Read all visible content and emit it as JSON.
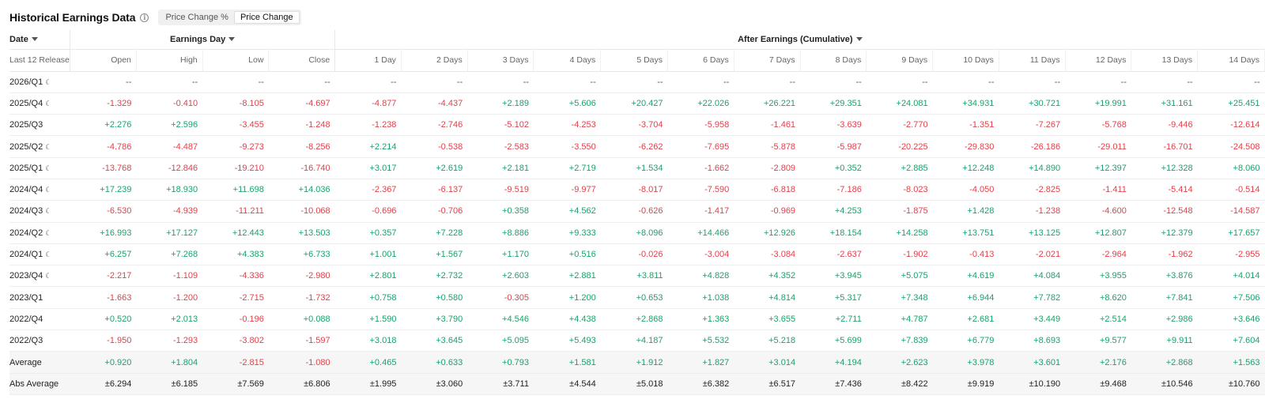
{
  "header": {
    "title": "Historical Earnings Data",
    "info_icon": "info-icon",
    "toggle": {
      "options": [
        "Price Change %",
        "Price Change"
      ],
      "selected": "Price Change"
    }
  },
  "table": {
    "group_headers": {
      "date": "Date",
      "earnings_day": "Earnings Day",
      "after_earnings": "After Earnings (Cumulative)"
    },
    "columns": [
      "Last 12 Releases",
      "Open",
      "High",
      "Low",
      "Close",
      "1 Day",
      "2 Days",
      "3 Days",
      "4 Days",
      "5 Days",
      "6 Days",
      "7 Days",
      "8 Days",
      "9 Days",
      "10 Days",
      "11 Days",
      "12 Days",
      "13 Days",
      "14 Days"
    ],
    "rows": [
      {
        "label": "2026/Q1",
        "moon": true,
        "values": [
          "--",
          "--",
          "--",
          "--",
          "--",
          "--",
          "--",
          "--",
          "--",
          "--",
          "--",
          "--",
          "--",
          "--",
          "--",
          "--",
          "--",
          "--"
        ]
      },
      {
        "label": "2025/Q4",
        "moon": true,
        "values": [
          "-1.329",
          "-0.410",
          "-8.105",
          "-4.697",
          "-4.877",
          "-4.437",
          "+2.189",
          "+5.606",
          "+20.427",
          "+22.026",
          "+26.221",
          "+29.351",
          "+24.081",
          "+34.931",
          "+30.721",
          "+19.991",
          "+31.161",
          "+25.451"
        ]
      },
      {
        "label": "2025/Q3",
        "moon": false,
        "values": [
          "+2.276",
          "+2.596",
          "-3.455",
          "-1.248",
          "-1.238",
          "-2.746",
          "-5.102",
          "-4.253",
          "-3.704",
          "-5.958",
          "-1.461",
          "-3.639",
          "-2.770",
          "-1.351",
          "-7.267",
          "-5.768",
          "-9.446",
          "-12.614"
        ]
      },
      {
        "label": "2025/Q2",
        "moon": true,
        "values": [
          "-4.786",
          "-4.487",
          "-9.273",
          "-8.256",
          "+2.214",
          "-0.538",
          "-2.583",
          "-3.550",
          "-6.262",
          "-7.695",
          "-5.878",
          "-5.987",
          "-20.225",
          "-29.830",
          "-26.186",
          "-29.011",
          "-16.701",
          "-24.508"
        ]
      },
      {
        "label": "2025/Q1",
        "moon": true,
        "values": [
          "-13.768",
          "-12.846",
          "-19.210",
          "-16.740",
          "+3.017",
          "+2.619",
          "+2.181",
          "+2.719",
          "+1.534",
          "-1.662",
          "-2.809",
          "+0.352",
          "+2.885",
          "+12.248",
          "+14.890",
          "+12.397",
          "+12.328",
          "+8.060"
        ]
      },
      {
        "label": "2024/Q4",
        "moon": true,
        "values": [
          "+17.239",
          "+18.930",
          "+11.698",
          "+14.036",
          "-2.367",
          "-6.137",
          "-9.519",
          "-9.977",
          "-8.017",
          "-7.590",
          "-6.818",
          "-7.186",
          "-8.023",
          "-4.050",
          "-2.825",
          "-1.411",
          "-5.414",
          "-0.514"
        ]
      },
      {
        "label": "2024/Q3",
        "moon": true,
        "values": [
          "-6.530",
          "-4.939",
          "-11.211",
          "-10.068",
          "-0.696",
          "-0.706",
          "+0.358",
          "+4.562",
          "-0.626",
          "-1.417",
          "-0.969",
          "+4.253",
          "-1.875",
          "+1.428",
          "-1.238",
          "-4.600",
          "-12.548",
          "-14.587"
        ]
      },
      {
        "label": "2024/Q2",
        "moon": true,
        "values": [
          "+16.993",
          "+17.127",
          "+12.443",
          "+13.503",
          "+0.357",
          "+7.228",
          "+8.886",
          "+9.333",
          "+8.096",
          "+14.466",
          "+12.926",
          "+18.154",
          "+14.258",
          "+13.751",
          "+13.125",
          "+12.807",
          "+12.379",
          "+17.657"
        ]
      },
      {
        "label": "2024/Q1",
        "moon": true,
        "values": [
          "+6.257",
          "+7.268",
          "+4.383",
          "+6.733",
          "+1.001",
          "+1.567",
          "+1.170",
          "+0.516",
          "-0.026",
          "-3.004",
          "-3.084",
          "-2.637",
          "-1.902",
          "-0.413",
          "-2.021",
          "-2.964",
          "-1.962",
          "-2.955"
        ]
      },
      {
        "label": "2023/Q4",
        "moon": true,
        "values": [
          "-2.217",
          "-1.109",
          "-4.336",
          "-2.980",
          "+2.801",
          "+2.732",
          "+2.603",
          "+2.881",
          "+3.811",
          "+4.828",
          "+4.352",
          "+3.945",
          "+5.075",
          "+4.619",
          "+4.084",
          "+3.955",
          "+3.876",
          "+4.014"
        ]
      },
      {
        "label": "2023/Q1",
        "moon": false,
        "values": [
          "-1.663",
          "-1.200",
          "-2.715",
          "-1.732",
          "+0.758",
          "+0.580",
          "-0.305",
          "+1.200",
          "+0.653",
          "+1.038",
          "+4.814",
          "+5.317",
          "+7.348",
          "+6.944",
          "+7.782",
          "+8.620",
          "+7.841",
          "+7.506"
        ]
      },
      {
        "label": "2022/Q4",
        "moon": false,
        "values": [
          "+0.520",
          "+2.013",
          "-0.196",
          "+0.088",
          "+1.590",
          "+3.790",
          "+4.546",
          "+4.438",
          "+2.868",
          "+1.363",
          "+3.655",
          "+2.711",
          "+4.787",
          "+2.681",
          "+3.449",
          "+2.514",
          "+2.986",
          "+3.646"
        ]
      },
      {
        "label": "2022/Q3",
        "moon": false,
        "values": [
          "-1.950",
          "-1.293",
          "-3.802",
          "-1.597",
          "+3.018",
          "+3.645",
          "+5.095",
          "+5.493",
          "+4.187",
          "+5.532",
          "+5.218",
          "+5.699",
          "+7.839",
          "+6.779",
          "+8.693",
          "+9.577",
          "+9.911",
          "+7.604"
        ]
      }
    ],
    "summary": [
      {
        "label": "Average",
        "kind": "signed",
        "values": [
          "+0.920",
          "+1.804",
          "-2.815",
          "-1.080",
          "+0.465",
          "+0.633",
          "+0.793",
          "+1.581",
          "+1.912",
          "+1.827",
          "+3.014",
          "+4.194",
          "+2.623",
          "+3.978",
          "+3.601",
          "+2.176",
          "+2.868",
          "+1.563"
        ]
      },
      {
        "label": "Abs Average",
        "kind": "abs",
        "values": [
          "±6.294",
          "±6.185",
          "±7.569",
          "±6.806",
          "±1.995",
          "±3.060",
          "±3.711",
          "±4.544",
          "±5.018",
          "±6.382",
          "±6.517",
          "±7.436",
          "±8.422",
          "±9.919",
          "±10.190",
          "±9.468",
          "±10.546",
          "±10.760"
        ]
      }
    ]
  }
}
